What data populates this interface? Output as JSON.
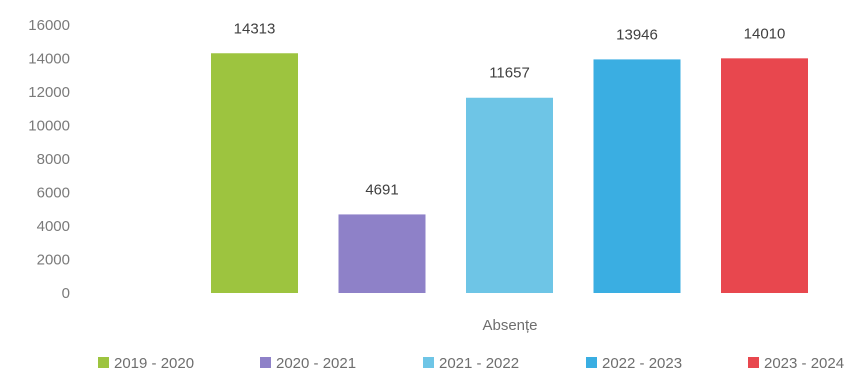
{
  "chart_data": {
    "type": "bar",
    "title": "",
    "xlabel": "Absențe",
    "ylabel": "",
    "ylim": [
      0,
      16000
    ],
    "yticks": [
      0,
      2000,
      4000,
      6000,
      8000,
      10000,
      12000,
      14000,
      16000
    ],
    "grid": false,
    "legend": "bottom",
    "series": [
      {
        "name": "2019 - 2020",
        "value": 14313,
        "color": "#9dc43f"
      },
      {
        "name": "2020 - 2021",
        "value": 4691,
        "color": "#8e81c8"
      },
      {
        "name": "2021 - 2022",
        "value": 11657,
        "color": "#6ec5e6"
      },
      {
        "name": "2022 - 2023",
        "value": 13946,
        "color": "#3aaee2"
      },
      {
        "name": "2023 - 2024",
        "value": 14010,
        "color": "#e8474e"
      }
    ]
  }
}
